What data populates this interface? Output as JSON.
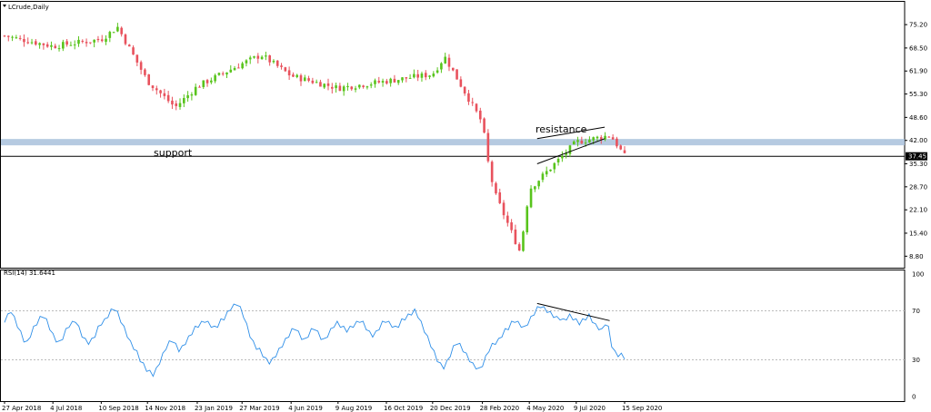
{
  "chart_data": [
    {
      "type": "candlestick",
      "title": "LCrude,Daily",
      "ylim": [
        5.5,
        82
      ],
      "y_ticks": [
        "75.20",
        "68.50",
        "61.90",
        "55.30",
        "48.60",
        "42.00",
        "35.30",
        "28.70",
        "22.10",
        "15.40",
        "8.80"
      ],
      "x_ticks": [
        "27 Apr 2018",
        "4 Jul 2018",
        "10 Sep 2018",
        "14 Nov 2018",
        "23 Jan 2019",
        "27 Mar 2019",
        "4 Jun 2019",
        "9 Aug 2019",
        "16 Oct 2019",
        "20 Dec 2019",
        "28 Feb 2020",
        "4 May 2020",
        "9 Jul 2020",
        "15 Sep 2020"
      ],
      "last_price": "37.45",
      "bull_color": "#58c41c",
      "bear_color": "#e8525d",
      "key_points": {
        "dates": [
          "27 Apr 2018",
          "4 Jul 2018",
          "10 Sep 2018",
          "3 Oct 2018",
          "14 Nov 2018",
          "23 Dec 2018",
          "23 Jan 2019",
          "27 Mar 2019",
          "23 Apr 2019",
          "4 Jun 2019",
          "9 Aug 2019",
          "16 Oct 2019",
          "20 Dec 2019",
          "6 Jan 2020",
          "28 Feb 2020",
          "9 Mar 2020",
          "18 Mar 2020",
          "21 Apr 2020",
          "4 May 2020",
          "9 Jul 2020",
          "26 Aug 2020",
          "15 Sep 2020"
        ],
        "close": [
          72.0,
          69.0,
          71.0,
          74.5,
          59.0,
          51.5,
          57.5,
          64.0,
          66.5,
          60.5,
          57.0,
          59.0,
          61.0,
          66.0,
          47.0,
          33.0,
          26.0,
          10.0,
          28.0,
          41.5,
          43.5,
          37.5
        ]
      },
      "annotations": {
        "support_label": "support",
        "resistance_label": "resistance",
        "zone_price": 41.5,
        "horizontal_line_price": 37.45
      }
    },
    {
      "type": "line",
      "title": "RSI(14) 31.6441",
      "ylim": [
        0,
        100
      ],
      "y_ticks": [
        "100",
        "70",
        "30",
        "0"
      ],
      "levels": [
        70,
        30
      ],
      "line_color": "#2f8fe8",
      "series": [
        {
          "values": [
            62,
            66,
            70,
            64,
            58,
            52,
            46,
            44,
            50,
            56,
            60,
            64,
            66,
            62,
            56,
            50,
            46,
            44,
            48,
            54,
            58,
            60,
            62,
            56,
            50,
            46,
            44,
            46,
            50,
            56,
            60,
            62,
            66,
            70,
            72,
            68,
            62,
            56,
            50,
            44,
            40,
            36,
            30,
            26,
            22,
            20,
            18,
            22,
            28,
            34,
            40,
            44,
            46,
            42,
            38,
            40,
            44,
            48,
            52,
            56,
            58,
            60,
            62,
            60,
            58,
            56,
            58,
            62,
            64,
            68,
            72,
            74,
            76,
            72,
            66,
            58,
            50,
            44,
            40,
            38,
            34,
            30,
            28,
            30,
            34,
            38,
            42,
            46,
            50,
            54,
            56,
            52,
            48,
            46,
            50,
            54,
            56,
            52,
            48,
            46,
            50,
            54,
            58,
            60,
            58,
            56,
            54,
            56,
            58,
            60,
            62,
            60,
            56,
            52,
            50,
            52,
            56,
            60,
            62,
            60,
            58,
            56,
            58,
            62,
            64,
            66,
            68,
            70,
            66,
            60,
            54,
            48,
            42,
            36,
            30,
            26,
            24,
            28,
            34,
            40,
            44,
            42,
            38,
            34,
            30,
            26,
            24,
            22,
            26,
            32,
            38,
            42,
            44,
            46,
            50,
            54,
            56,
            60,
            62,
            60,
            58,
            56,
            60,
            64,
            68,
            72,
            74,
            72,
            70,
            68,
            66,
            64,
            64,
            62,
            64,
            66,
            64,
            62,
            60,
            62,
            64,
            66,
            62,
            58,
            56,
            54,
            60,
            56,
            42,
            36,
            34,
            34,
            32
          ]
        }
      ]
    }
  ]
}
